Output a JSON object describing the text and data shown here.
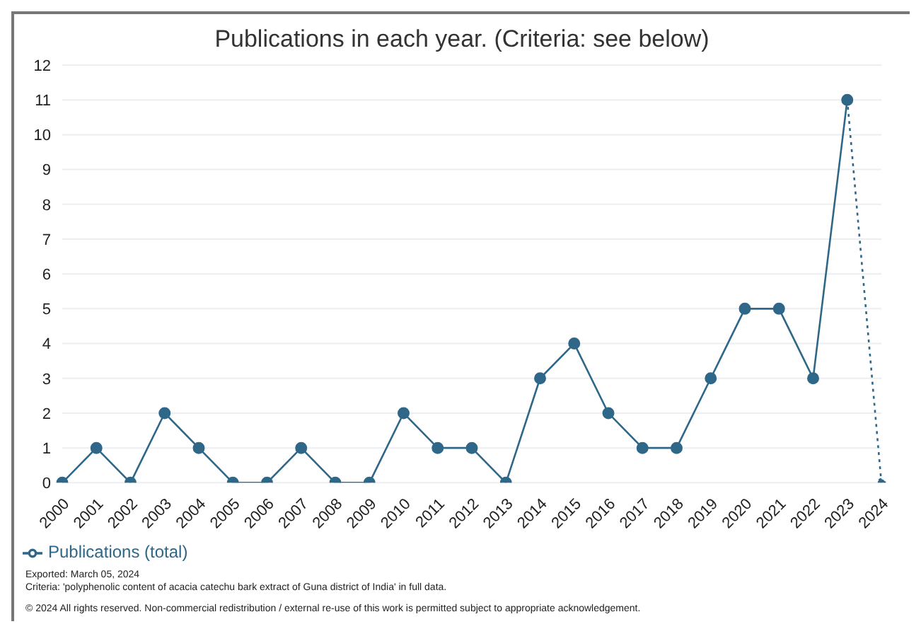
{
  "chart_data": {
    "type": "line",
    "title": "Publications in each year. (Criteria: see below)",
    "categories": [
      "2000",
      "2001",
      "2002",
      "2003",
      "2004",
      "2005",
      "2006",
      "2007",
      "2008",
      "2009",
      "2010",
      "2011",
      "2012",
      "2013",
      "2014",
      "2015",
      "2016",
      "2017",
      "2018",
      "2019",
      "2020",
      "2021",
      "2022",
      "2023",
      "2024"
    ],
    "series": [
      {
        "name": "Publications (total)",
        "color": "#2f6788",
        "line_style": "solid",
        "values": [
          0,
          1,
          0,
          2,
          1,
          0,
          0,
          1,
          0,
          0,
          2,
          1,
          1,
          0,
          3,
          4,
          2,
          1,
          1,
          3,
          5,
          5,
          3,
          11,
          null
        ]
      },
      {
        "color": "#2f6788",
        "line_style": "dotted",
        "values": [
          null,
          null,
          null,
          null,
          null,
          null,
          null,
          null,
          null,
          null,
          null,
          null,
          null,
          null,
          null,
          null,
          null,
          null,
          null,
          null,
          null,
          null,
          null,
          11,
          0
        ]
      }
    ],
    "ylim": [
      0,
      12
    ],
    "yticks": [
      0,
      1,
      2,
      3,
      4,
      5,
      6,
      7,
      8,
      9,
      10,
      11,
      12
    ],
    "grid": "y",
    "marker": "circle",
    "legend": "bottom left",
    "annotations": [
      "Exported: March 05, 2024",
      "Criteria: 'polyphenolic content of acacia catechu bark extract of Guna district of India' in full data.",
      "© 2024 All rights reserved. Non-commercial redistribution / external re-use of this work is permitted subject to appropriate acknowledgement."
    ]
  }
}
